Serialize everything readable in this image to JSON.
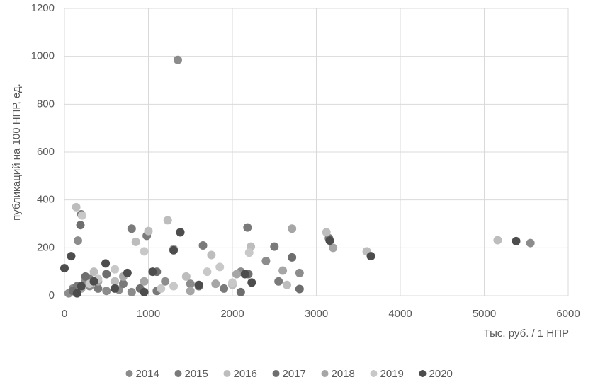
{
  "chart_data": {
    "type": "scatter",
    "x_label": "Тыс. руб. / 1 НПР",
    "y_label": "публикаций на 100 НПР, ед.",
    "xlim": [
      0,
      6000
    ],
    "xticks": [
      0,
      1000,
      2000,
      3000,
      4000,
      5000,
      6000
    ],
    "ylim": [
      0,
      1200
    ],
    "yticks": [
      0,
      200,
      400,
      600,
      800,
      1000,
      1200
    ],
    "grid": true,
    "legend": "bottom",
    "series": [
      {
        "name": "2014",
        "color": "#8c8c8c",
        "x": [
          1350,
          160,
          2400,
          2800,
          5550,
          100,
          300,
          500,
          800,
          1200,
          1500,
          50,
          250,
          650,
          2100
        ],
        "values": [
          985,
          230,
          145,
          95,
          220,
          30,
          40,
          20,
          15,
          60,
          50,
          10,
          60,
          25,
          100
        ]
      },
      {
        "name": "2015",
        "color": "#7a7a7a",
        "x": [
          800,
          200,
          2180,
          2550,
          3150,
          1650,
          980,
          150,
          400,
          700,
          1100,
          300,
          1900,
          2500
        ],
        "values": [
          280,
          340,
          285,
          60,
          240,
          210,
          250,
          40,
          30,
          50,
          20,
          70,
          30,
          205
        ]
      },
      {
        "name": "2016",
        "color": "#bdbdbd",
        "x": [
          140,
          1230,
          3120,
          5160,
          1000,
          2220,
          1750,
          850,
          3600,
          600,
          350,
          1450,
          2000,
          2650
        ],
        "values": [
          370,
          315,
          265,
          232,
          270,
          205,
          170,
          225,
          185,
          60,
          100,
          80,
          45,
          45
        ]
      },
      {
        "name": "2017",
        "color": "#6e6e6e",
        "x": [
          190,
          1380,
          2710,
          2800,
          2190,
          1100,
          500,
          250,
          900,
          1600,
          100,
          2100
        ],
        "values": [
          295,
          265,
          160,
          28,
          90,
          100,
          90,
          80,
          30,
          40,
          20,
          15
        ]
      },
      {
        "name": "2018",
        "color": "#a6a6a6",
        "x": [
          2710,
          3200,
          2600,
          1300,
          1800,
          700,
          400,
          200,
          1500,
          2050,
          950
        ],
        "values": [
          280,
          200,
          105,
          195,
          50,
          80,
          60,
          30,
          20,
          90,
          60
        ]
      },
      {
        "name": "2019",
        "color": "#c8c8c8",
        "x": [
          210,
          950,
          1300,
          2000,
          1700,
          600,
          400,
          300,
          1150,
          1850,
          2200
        ],
        "values": [
          335,
          185,
          40,
          55,
          100,
          110,
          70,
          50,
          30,
          120,
          180
        ]
      },
      {
        "name": "2020",
        "color": "#4d4d4d",
        "x": [
          5380,
          3650,
          3160,
          1380,
          80,
          0,
          490,
          1300,
          2230,
          1050,
          200,
          350,
          750,
          1600,
          2150,
          150,
          600,
          950
        ],
        "values": [
          228,
          165,
          230,
          265,
          165,
          115,
          135,
          190,
          55,
          100,
          40,
          60,
          95,
          45,
          90,
          10,
          30,
          15
        ]
      }
    ]
  }
}
